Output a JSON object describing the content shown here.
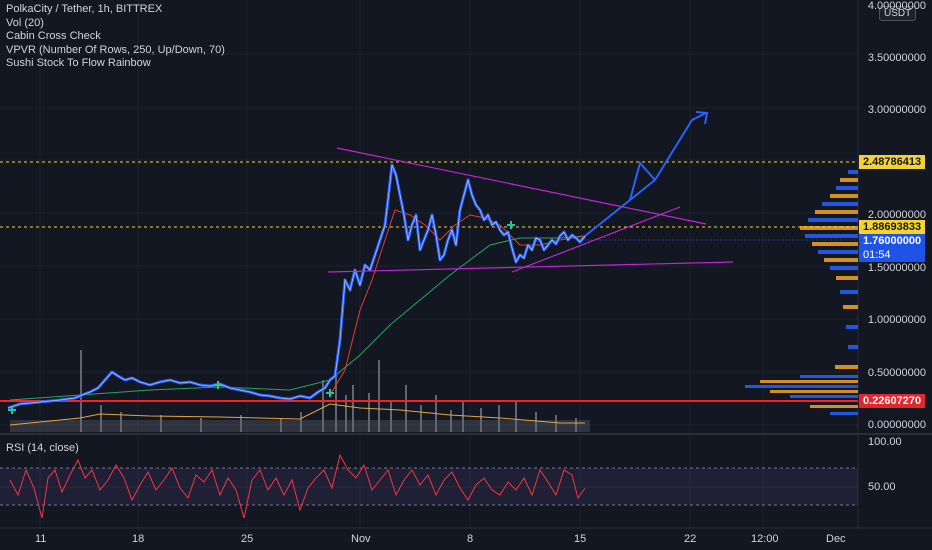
{
  "legend": {
    "symbol": "PolkaCity / Tether, 1h, BITTREX",
    "vol": "Vol (20)",
    "indicator1": "Cabin Cross Check",
    "indicator2": "VPVR (Number Of Rows, 250, Up/Down, 70)",
    "indicator3": "Sushi Stock To Flow Rainbow"
  },
  "currency": "USDT",
  "price_axis": [
    "4.00000000",
    "3.50000000",
    "3.00000000",
    "2.00000000",
    "1.50000000",
    "1.00000000",
    "0.50000000",
    "0.00000000"
  ],
  "tags": {
    "resistance": "2.48786413",
    "mid": "1.88693833",
    "last_price": "1.76000000",
    "countdown": "01:54",
    "support": "0.22607270"
  },
  "rsi": {
    "label": "RSI (14, close)",
    "scale": [
      "100.00",
      "50.00"
    ]
  },
  "time_axis": [
    "11",
    "18",
    "25",
    "Nov",
    "8",
    "15",
    "22",
    "12:00",
    "Dec"
  ],
  "colors": {
    "background": "#131722",
    "price_line": "#2962ff",
    "resistance": "#f5d32e",
    "support": "#ff1f1f",
    "trendline": "#c026d3",
    "rsi": "#f23645"
  }
}
